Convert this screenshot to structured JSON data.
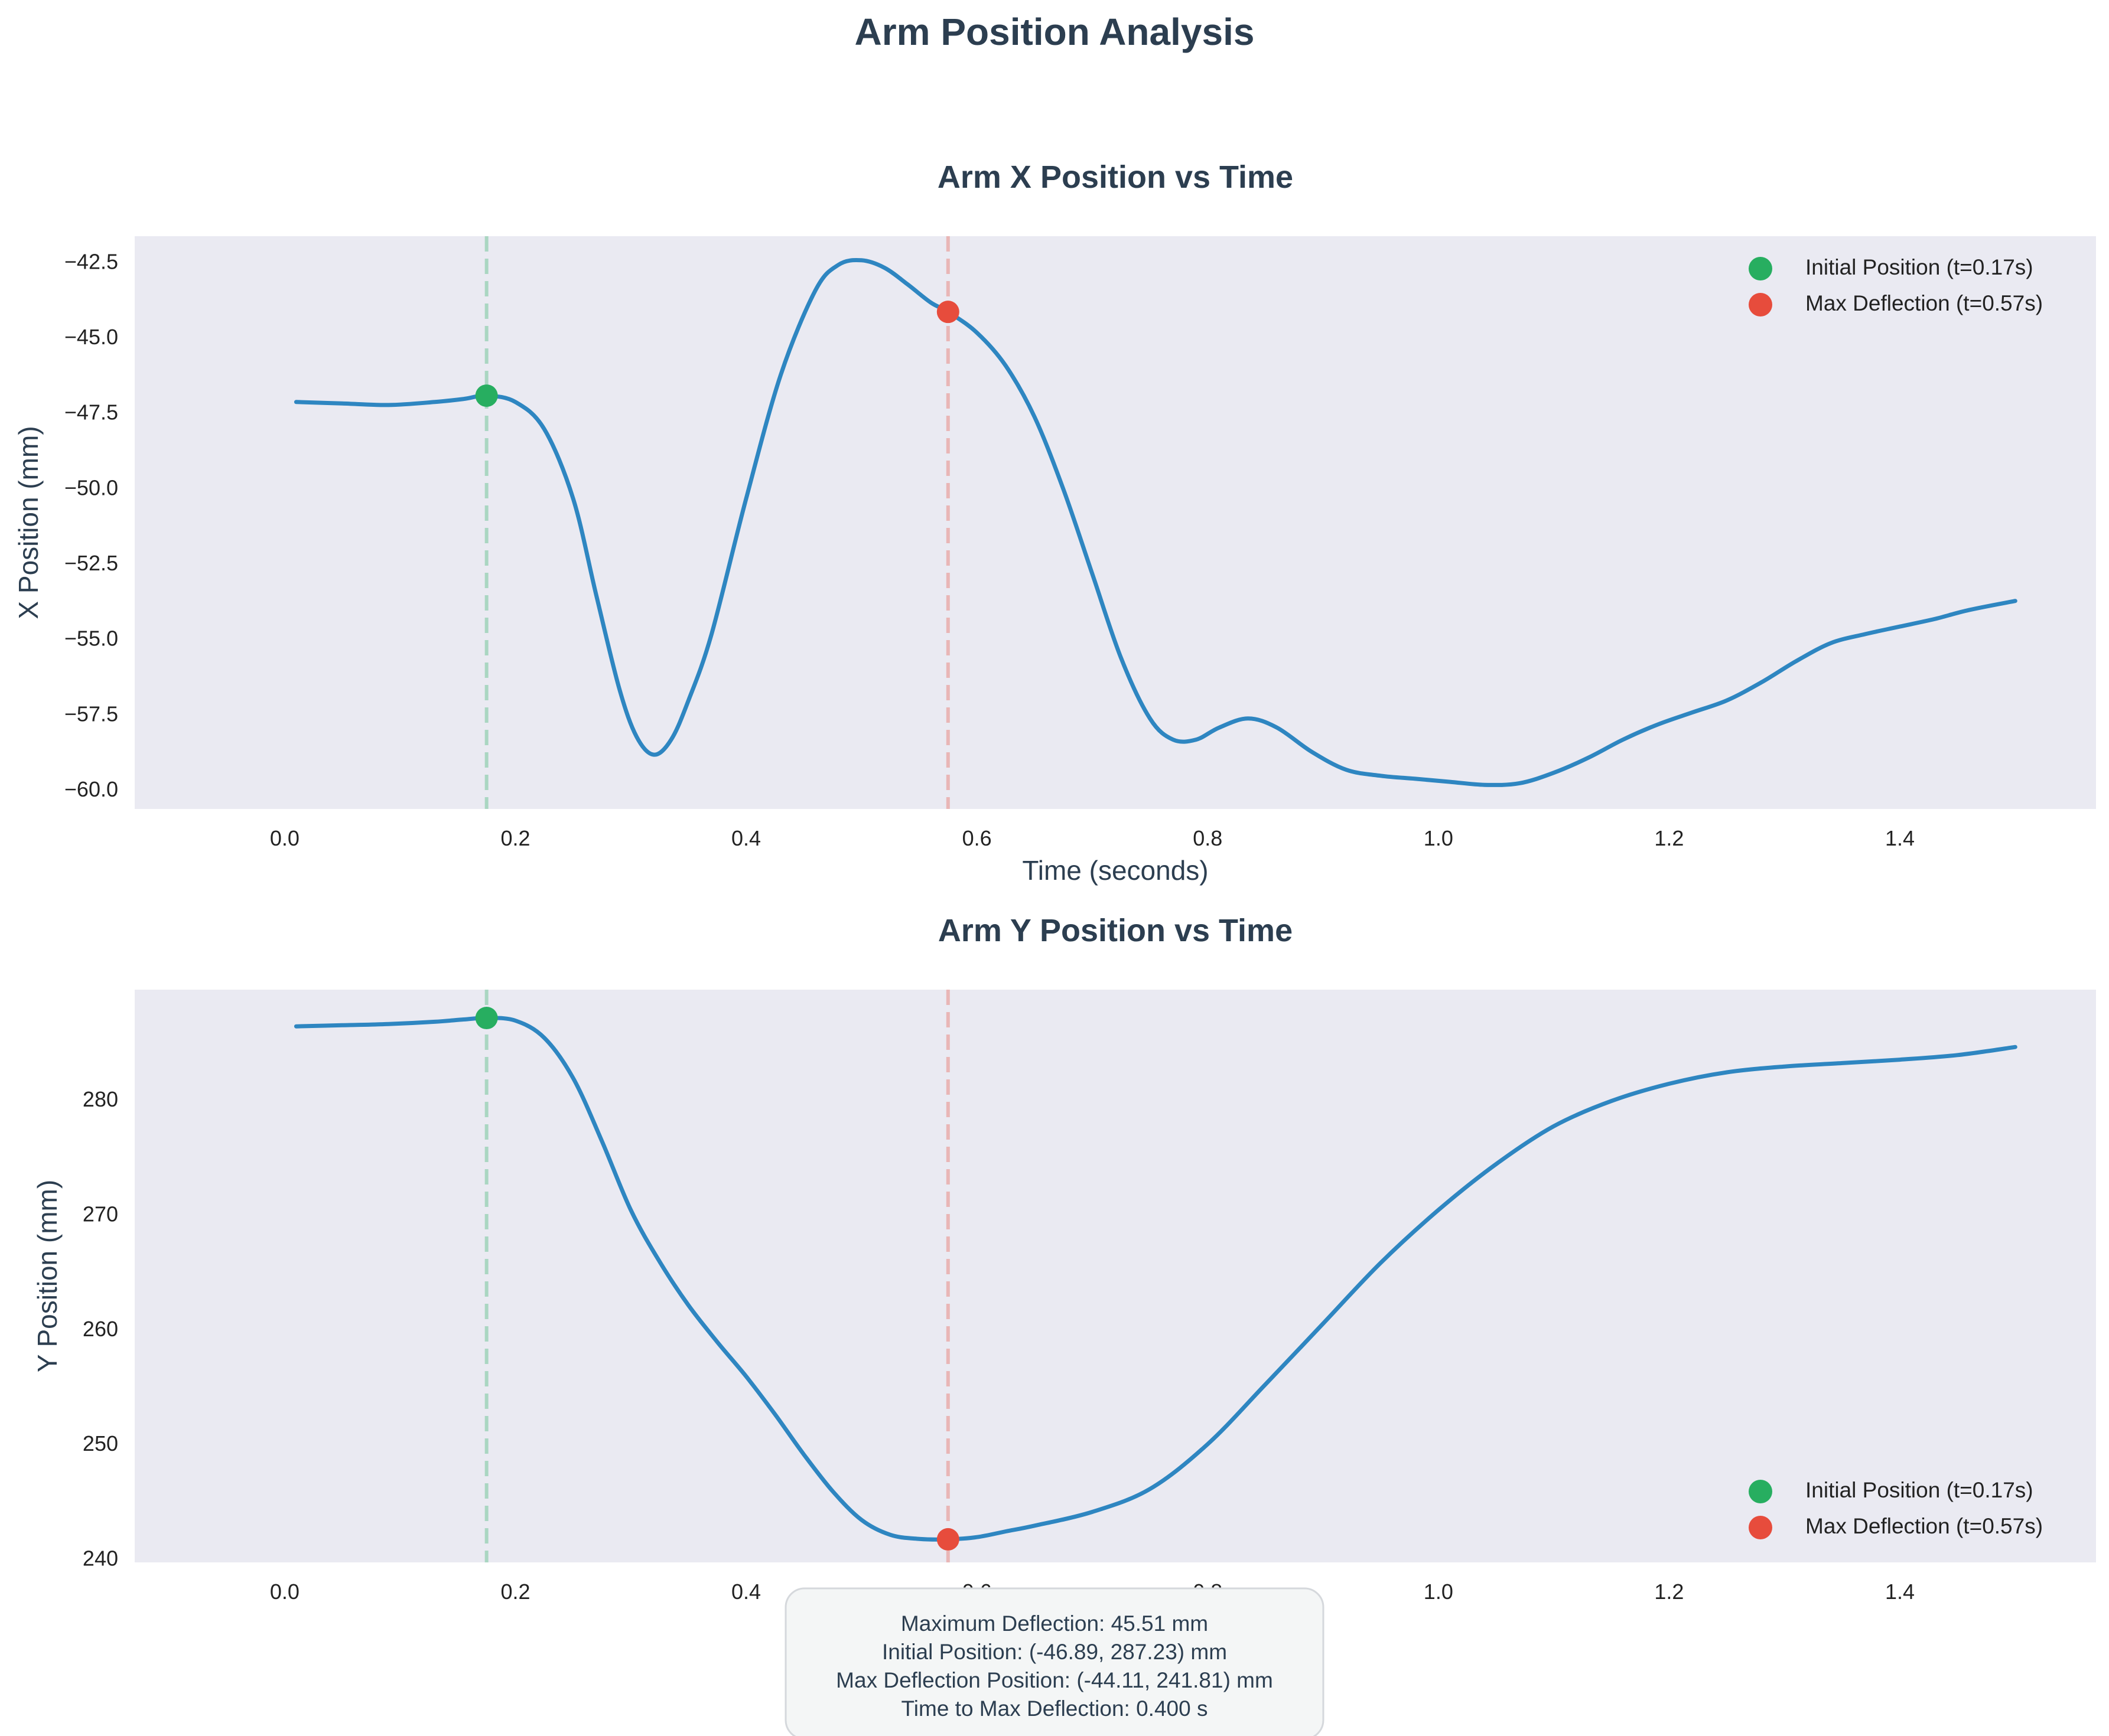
{
  "figure": {
    "suptitle": "Arm Position Analysis"
  },
  "colors": {
    "line": "#2e86c1",
    "initial": "#27ae60",
    "max": "#e74c3c",
    "axes_bg": "#eaeaf2",
    "text": "#2c3e50"
  },
  "chart_data": [
    {
      "type": "line",
      "title": "Arm X Position vs Time",
      "xlabel": "Time (seconds)",
      "ylabel": "X Position (mm)",
      "xlim": [
        -0.13,
        1.57
      ],
      "ylim": [
        -60.6,
        -41.6
      ],
      "xticks": [
        0.0,
        0.2,
        0.4,
        0.6,
        0.8,
        1.0,
        1.2,
        1.4
      ],
      "xtick_labels": [
        "0.0",
        "0.2",
        "0.4",
        "0.6",
        "0.8",
        "1.0",
        "1.2",
        "1.4"
      ],
      "yticks": [
        -42.5,
        -45.0,
        -47.5,
        -50.0,
        -52.5,
        -55.0,
        -57.5,
        -60.0
      ],
      "ytick_labels": [
        "−42.5",
        "−45.0",
        "−47.5",
        "−50.0",
        "−52.5",
        "−55.0",
        "−57.5",
        "−60.0"
      ],
      "grid": false,
      "legend_position": "upper-right",
      "series": [
        {
          "x": [
            0.01,
            0.05,
            0.09,
            0.13,
            0.155,
            0.175,
            0.2,
            0.225,
            0.25,
            0.27,
            0.29,
            0.305,
            0.32,
            0.335,
            0.35,
            0.37,
            0.4,
            0.43,
            0.46,
            0.48,
            0.5,
            0.52,
            0.54,
            0.56,
            0.575,
            0.6,
            0.625,
            0.65,
            0.675,
            0.7,
            0.725,
            0.75,
            0.77,
            0.79,
            0.81,
            0.835,
            0.86,
            0.89,
            0.92,
            0.95,
            0.98,
            1.01,
            1.04,
            1.07,
            1.1,
            1.13,
            1.16,
            1.19,
            1.22,
            1.25,
            1.28,
            1.31,
            1.34,
            1.37,
            1.4,
            1.43,
            1.46,
            1.5
          ],
          "y": [
            -47.1,
            -47.15,
            -47.2,
            -47.1,
            -47.0,
            -46.89,
            -47.1,
            -48.0,
            -50.3,
            -53.5,
            -56.6,
            -58.2,
            -58.8,
            -58.3,
            -57.0,
            -54.8,
            -50.3,
            -46.2,
            -43.4,
            -42.55,
            -42.4,
            -42.65,
            -43.2,
            -43.8,
            -44.11,
            -44.8,
            -45.9,
            -47.6,
            -50.0,
            -52.8,
            -55.6,
            -57.6,
            -58.3,
            -58.3,
            -57.9,
            -57.6,
            -57.9,
            -58.7,
            -59.3,
            -59.5,
            -59.6,
            -59.7,
            -59.8,
            -59.75,
            -59.4,
            -58.9,
            -58.3,
            -57.8,
            -57.4,
            -57.0,
            -56.4,
            -55.7,
            -55.1,
            -54.8,
            -54.55,
            -54.3,
            -54.0,
            -53.7
          ]
        }
      ],
      "markers": [
        {
          "label": "Initial Position (t=0.17s)",
          "x": 0.175,
          "y": -46.89,
          "role": "initial"
        },
        {
          "label": "Max Deflection (t=0.57s)",
          "x": 0.575,
          "y": -44.11,
          "role": "max"
        }
      ]
    },
    {
      "type": "line",
      "title": "Arm Y Position vs Time",
      "xlabel": "",
      "ylabel": "Y Position (mm)",
      "xlim": [
        -0.13,
        1.57
      ],
      "ylim": [
        239.8,
        289.7
      ],
      "xticks": [
        0.0,
        0.2,
        0.4,
        0.6,
        0.8,
        1.0,
        1.2,
        1.4
      ],
      "xtick_labels": [
        "0.0",
        "0.2",
        "0.4",
        "0.6",
        "0.8",
        "1.0",
        "1.2",
        "1.4"
      ],
      "yticks": [
        240,
        250,
        260,
        270,
        280
      ],
      "ytick_labels": [
        "240",
        "250",
        "260",
        "270",
        "280"
      ],
      "grid": false,
      "legend_position": "lower-right",
      "series": [
        {
          "x": [
            0.01,
            0.05,
            0.09,
            0.13,
            0.155,
            0.175,
            0.2,
            0.225,
            0.25,
            0.275,
            0.3,
            0.325,
            0.35,
            0.375,
            0.4,
            0.425,
            0.45,
            0.475,
            0.5,
            0.525,
            0.55,
            0.575,
            0.6,
            0.625,
            0.65,
            0.7,
            0.75,
            0.8,
            0.85,
            0.9,
            0.95,
            1.0,
            1.05,
            1.1,
            1.15,
            1.2,
            1.25,
            1.3,
            1.35,
            1.4,
            1.45,
            1.5
          ],
          "y": [
            286.5,
            286.6,
            286.7,
            286.9,
            287.1,
            287.23,
            287.0,
            285.5,
            282.0,
            276.5,
            270.5,
            266.0,
            262.2,
            259.0,
            256.0,
            252.7,
            249.2,
            246.0,
            243.5,
            242.2,
            241.85,
            241.81,
            242.0,
            242.5,
            243.0,
            244.2,
            246.2,
            250.1,
            255.3,
            260.6,
            265.9,
            270.5,
            274.5,
            277.8,
            280.0,
            281.5,
            282.5,
            283.0,
            283.3,
            283.6,
            284.0,
            284.7
          ]
        }
      ],
      "markers": [
        {
          "label": "Initial Position (t=0.17s)",
          "x": 0.175,
          "y": 287.23,
          "role": "initial"
        },
        {
          "label": "Max Deflection (t=0.57s)",
          "x": 0.575,
          "y": 241.81,
          "role": "max"
        }
      ]
    }
  ],
  "info_box": {
    "lines": [
      "Maximum Deflection: 45.51 mm",
      "Initial Position: (-46.89, 287.23) mm",
      "Max Deflection Position: (-44.11, 241.81) mm",
      "Time to Max Deflection: 0.400 s"
    ]
  }
}
